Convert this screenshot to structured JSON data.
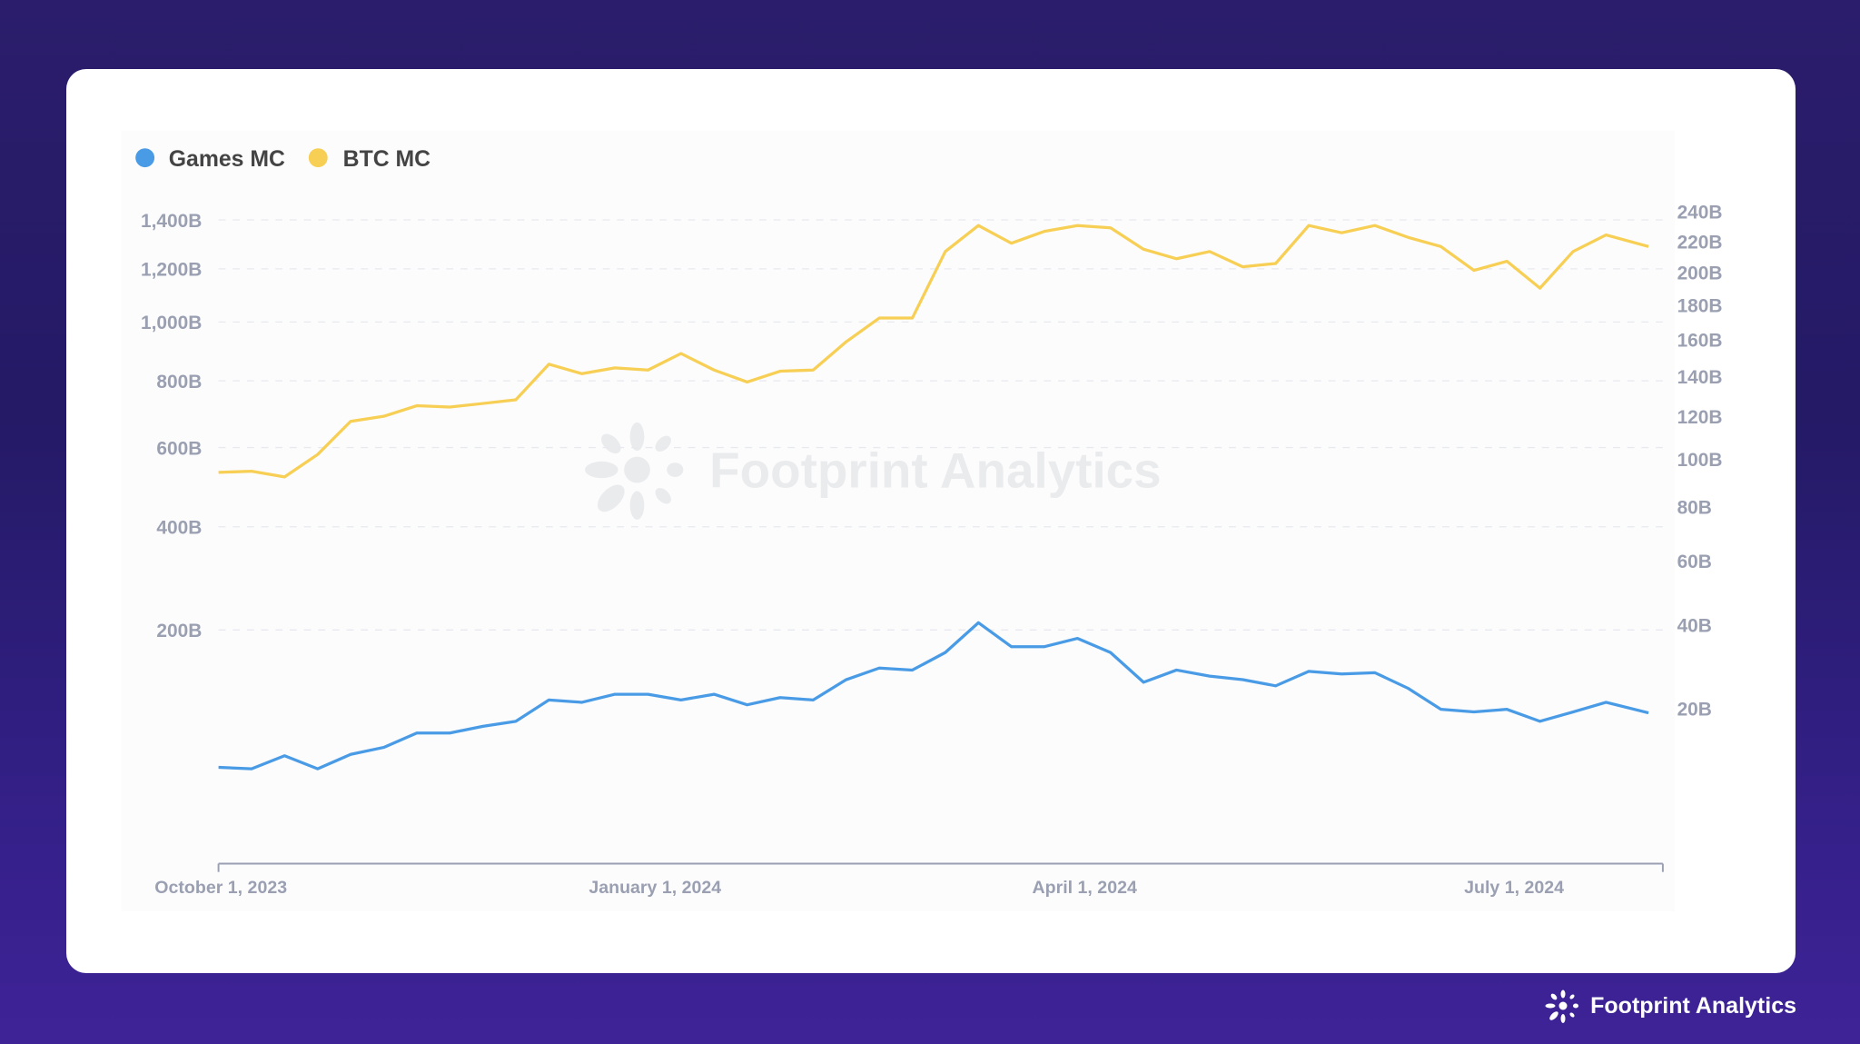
{
  "brand": {
    "name": "Footprint Analytics"
  },
  "chart_data": {
    "type": "line",
    "title": "",
    "legend": [
      {
        "name": "Games MC",
        "color": "#4a9be6"
      },
      {
        "name": "BTC MC",
        "color": "#f7cf55"
      }
    ],
    "legend_position": "top-left",
    "x": [
      "2023-10-01",
      "2023-10-08",
      "2023-10-15",
      "2023-10-22",
      "2023-10-29",
      "2023-11-05",
      "2023-11-12",
      "2023-11-19",
      "2023-11-26",
      "2023-12-03",
      "2023-12-10",
      "2023-12-17",
      "2023-12-24",
      "2023-12-31",
      "2024-01-07",
      "2024-01-14",
      "2024-01-21",
      "2024-01-28",
      "2024-02-04",
      "2024-02-11",
      "2024-02-18",
      "2024-02-25",
      "2024-03-03",
      "2024-03-10",
      "2024-03-17",
      "2024-03-24",
      "2024-03-31",
      "2024-04-07",
      "2024-04-14",
      "2024-04-21",
      "2024-04-28",
      "2024-05-05",
      "2024-05-12",
      "2024-05-19",
      "2024-05-26",
      "2024-06-02",
      "2024-06-09",
      "2024-06-16",
      "2024-06-23",
      "2024-06-30",
      "2024-07-07",
      "2024-07-14",
      "2024-07-21",
      "2024-07-30"
    ],
    "x_ticks": [
      {
        "date": "2023-10-01",
        "label": "October 1, 2023"
      },
      {
        "date": "2024-01-01",
        "label": "January 1, 2024"
      },
      {
        "date": "2024-04-01",
        "label": "April 1, 2024"
      },
      {
        "date": "2024-07-01",
        "label": "July 1, 2024"
      }
    ],
    "series": [
      {
        "name": "BTC MC",
        "axis": "left",
        "unit": "B",
        "values": [
          533,
          536,
          521,
          581,
          675,
          690,
          722,
          718,
          729,
          740,
          854,
          823,
          842,
          835,
          890,
          835,
          796,
          831,
          835,
          930,
          1014,
          1014,
          1269,
          1376,
          1303,
          1352,
          1376,
          1367,
          1278,
          1240,
          1269,
          1208,
          1221,
          1376,
          1346,
          1376,
          1327,
          1289,
          1194,
          1230,
          1125,
          1269,
          1337,
          1289
        ]
      },
      {
        "name": "Games MC",
        "axis": "right",
        "unit": "B",
        "values": [
          10.0,
          9.8,
          11.7,
          9.8,
          11.9,
          13.0,
          15.4,
          15.4,
          16.6,
          17.5,
          21.7,
          21.2,
          22.9,
          22.9,
          21.7,
          22.9,
          20.7,
          22.2,
          21.7,
          26.1,
          28.8,
          28.3,
          32.6,
          40.6,
          34.1,
          34.1,
          36.3,
          32.6,
          25.5,
          28.3,
          26.9,
          26.1,
          24.7,
          28.0,
          27.4,
          27.7,
          24.2,
          19.8,
          19.3,
          19.8,
          17.5,
          19.3,
          21.2,
          19.1
        ]
      }
    ],
    "y_left": {
      "scale": "sqrt",
      "ticks": [
        200,
        400,
        600,
        800,
        1000,
        1200,
        1400
      ],
      "labels": [
        "200B",
        "400B",
        "600B",
        "800B",
        "1,000B",
        "1,200B",
        "1,400B"
      ]
    },
    "y_right": {
      "scale": "sqrt",
      "ticks": [
        20,
        40,
        60,
        80,
        100,
        120,
        140,
        160,
        180,
        200,
        220,
        240
      ],
      "labels": [
        "20B",
        "40B",
        "60B",
        "80B",
        "100B",
        "120B",
        "140B",
        "160B",
        "180B",
        "200B",
        "220B",
        "240B"
      ]
    },
    "grid": true,
    "watermark": "Footprint Analytics"
  }
}
